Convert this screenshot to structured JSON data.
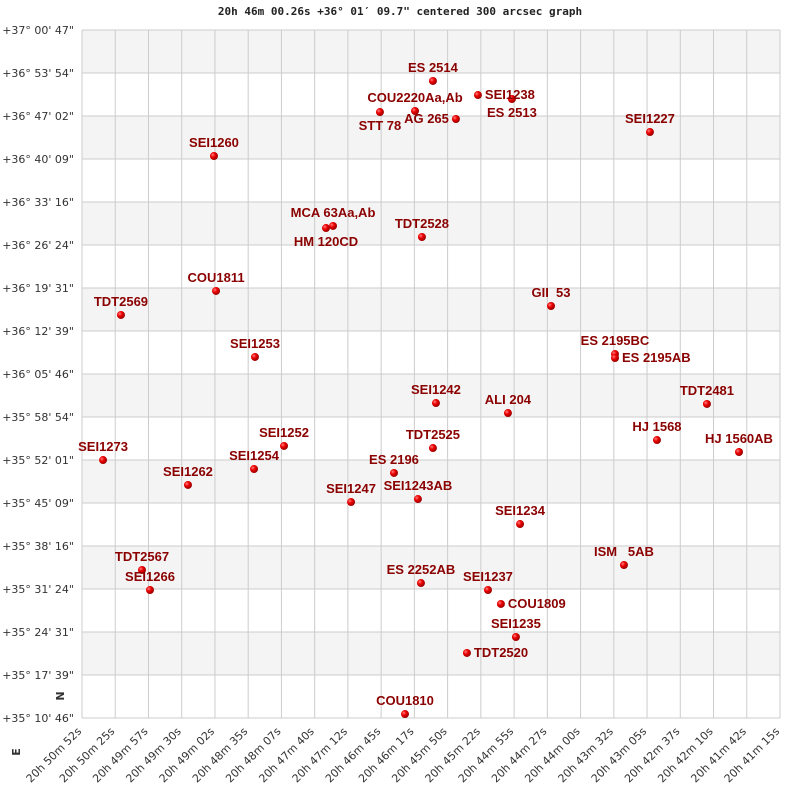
{
  "chart_data": {
    "type": "scatter",
    "title": "20h 46m 00.26s +36° 01′ 09.7\" centered 300 arcsec graph",
    "x_axis": {
      "unit": "right ascension",
      "reversed": true,
      "range": [
        "20 50 52",
        "20 41 15"
      ],
      "tick_labels": [
        "20h 50m 52s",
        "20h 50m 25s",
        "20h 49m 57s",
        "20h 49m 30s",
        "20h 49m 02s",
        "20h 48m 35s",
        "20h 48m 07s",
        "20h 47m 40s",
        "20h 47m 12s",
        "20h 46m 45s",
        "20h 46m 17s",
        "20h 45m 50s",
        "20h 45m 22s",
        "20h 44m 55s",
        "20h 44m 27s",
        "20h 44m 00s",
        "20h 43m 32s",
        "20h 43m 05s",
        "20h 42m 37s",
        "20h 42m 10s",
        "20h 41m 42s",
        "20h 41m 15s"
      ]
    },
    "y_axis": {
      "unit": "declination",
      "range": [
        "+35 10 46",
        "+37 00 47"
      ],
      "tick_labels": [
        "+37° 00' 47\"",
        "+36° 53' 54\"",
        "+36° 47' 02\"",
        "+36° 40' 09\"",
        "+36° 33' 16\"",
        "+36° 26' 24\"",
        "+36° 19' 31\"",
        "+36° 12' 39\"",
        "+36° 05' 46\"",
        "+35° 58' 54\"",
        "+35° 52' 01\"",
        "+35° 45' 09\"",
        "+35° 38' 16\"",
        "+35° 31' 24\"",
        "+35° 24' 31\"",
        "+35° 17' 39\"",
        "+35° 10' 46\""
      ]
    },
    "grid": true,
    "banded_rows": true,
    "compass": {
      "north": "N",
      "east": "E"
    },
    "colors": {
      "point": "#dd0000",
      "label": "#8b0000",
      "band": "#f4f4f4",
      "grid": "#cccccc"
    },
    "points": [
      {
        "name": "ES 2514",
        "ra": "20 46 01.9",
        "dec": "+36 52 38"
      },
      {
        "name": "SEI1238",
        "ra": "20 45 24.7",
        "dec": "+36 50 23"
      },
      {
        "name": "ES 2513",
        "ra": "20 44 56.6",
        "dec": "+36 49 45"
      },
      {
        "name": "STT 78",
        "ra": "20 46 45.7",
        "dec": "+36 47 40"
      },
      {
        "name": "COU2220Aa,Ab",
        "ra": "20 46 16.7",
        "dec": "+36 47 50"
      },
      {
        "name": "AG 265",
        "ra": "20 45 42.9",
        "dec": "+36 46 33"
      },
      {
        "name": "SEI1227",
        "ra": "20 43 02.5",
        "dec": "+36 44 28"
      },
      {
        "name": "SEI1260",
        "ra": "20 49 02.9",
        "dec": "+36 40 38"
      },
      {
        "name": "HM 120CD",
        "ra": "20 47 30.3",
        "dec": "+36 29 07"
      },
      {
        "name": "MCA 63Aa,Ab",
        "ra": "20 47 24.5",
        "dec": "+36 29 27"
      },
      {
        "name": "TDT2528",
        "ra": "20 46 11.0",
        "dec": "+36 27 41"
      },
      {
        "name": "COU1811",
        "ra": "20 49 01.2",
        "dec": "+36 19 03"
      },
      {
        "name": "TDT2569",
        "ra": "20 50 19.8",
        "dec": "+36 15 13"
      },
      {
        "name": "GII  53",
        "ra": "20 44 24.3",
        "dec": "+36 16 39"
      },
      {
        "name": "ES 2195BC",
        "ra": "20 43 31.4",
        "dec": "+36 08 58"
      },
      {
        "name": "ES 2195AB",
        "ra": "20 43 31.4",
        "dec": "+36 08 20"
      },
      {
        "name": "SEI1253",
        "ra": "20 48 29.0",
        "dec": "+36 08 30"
      },
      {
        "name": "SEI1242",
        "ra": "20 45 59.4",
        "dec": "+36 01 08"
      },
      {
        "name": "ALI 204",
        "ra": "20 44 59.9",
        "dec": "+35 59 32"
      },
      {
        "name": "TDT2481",
        "ra": "20 42 15.4",
        "dec": "+36 00 59"
      },
      {
        "name": "HJ 1568",
        "ra": "20 42 56.7",
        "dec": "+35 55 13"
      },
      {
        "name": "HJ 1560AB",
        "ra": "20 41 48.9",
        "dec": "+35 53 18"
      },
      {
        "name": "TDT2525",
        "ra": "20 46 01.9",
        "dec": "+35 53 56"
      },
      {
        "name": "SEI1252",
        "ra": "20 48 05.0",
        "dec": "+35 54 16"
      },
      {
        "name": "SEI1273",
        "ra": "20 50 34.6",
        "dec": "+35 52 01"
      },
      {
        "name": "SEI1254",
        "ra": "20 48 29.8",
        "dec": "+35 50 35"
      },
      {
        "name": "ES 2196",
        "ra": "20 46 34.1",
        "dec": "+35 49 57"
      },
      {
        "name": "SEI1262",
        "ra": "20 49 24.4",
        "dec": "+35 48 02"
      },
      {
        "name": "SEI1243AB",
        "ra": "20 46 14.3",
        "dec": "+35 45 47"
      },
      {
        "name": "SEI1247",
        "ra": "20 47 09.6",
        "dec": "+35 45 18"
      },
      {
        "name": "SEI1234",
        "ra": "20 44 49.9",
        "dec": "+35 41 47"
      },
      {
        "name": "ISM   5AB",
        "ra": "20 43 24.0",
        "dec": "+35 35 14"
      },
      {
        "name": "TDT2567",
        "ra": "20 50 02.4",
        "dec": "+35 34 26"
      },
      {
        "name": "SEI1266",
        "ra": "20 49 55.8",
        "dec": "+35 31 14"
      },
      {
        "name": "ES 2252AB",
        "ra": "20 46 11.8",
        "dec": "+35 32 21"
      },
      {
        "name": "SEI1237",
        "ra": "20 45 16.4",
        "dec": "+35 31 14"
      },
      {
        "name": "COU1809",
        "ra": "20 45 05.7",
        "dec": "+35 29 00"
      },
      {
        "name": "SEI1235",
        "ra": "20 44 53.3",
        "dec": "+35 23 43"
      },
      {
        "name": "TDT2520",
        "ra": "20 45 33.8",
        "dec": "+35 21 10"
      },
      {
        "name": "COU1810",
        "ra": "20 46 25.0",
        "dec": "+35 11 24"
      }
    ]
  }
}
